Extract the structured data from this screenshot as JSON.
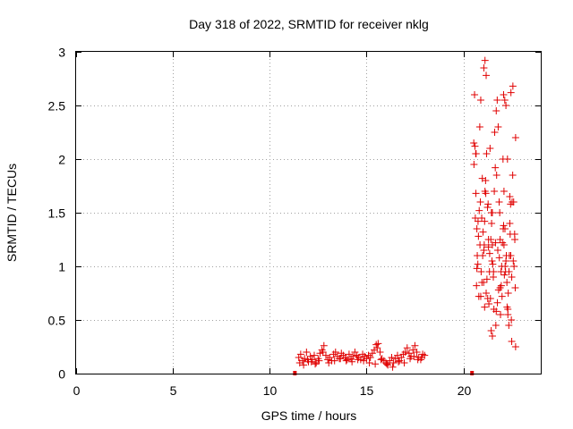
{
  "chart_data": {
    "type": "scatter",
    "title": "Day 318 of 2022, SRMTID for receiver nklg",
    "xlabel": "GPS time / hours",
    "ylabel": "SRMTID / TECUs",
    "xlim": [
      0,
      24
    ],
    "ylim": [
      0,
      3
    ],
    "xticks": [
      0,
      5,
      10,
      15,
      20
    ],
    "yticks": [
      0,
      0.5,
      1,
      1.5,
      2,
      2.5,
      3
    ],
    "xtick_labels": [
      "0",
      "5",
      "10",
      "15",
      "20"
    ],
    "ytick_labels": [
      "0",
      "0.5",
      "1",
      "1.5",
      "2",
      "2.5",
      "3"
    ],
    "grid": true,
    "marker_color": "#e00000",
    "zero_markers": [
      11.3,
      20.45
    ],
    "series": [
      {
        "name": "SRMTID",
        "x": [
          11.5,
          11.6,
          11.7,
          11.8,
          11.9,
          12.0,
          12.1,
          12.2,
          12.3,
          12.4,
          12.5,
          12.6,
          12.7,
          12.8,
          12.9,
          13.0,
          13.1,
          13.2,
          13.3,
          13.4,
          13.5,
          13.6,
          13.7,
          13.8,
          13.9,
          14.0,
          14.1,
          14.2,
          14.3,
          14.4,
          14.5,
          14.6,
          14.7,
          14.8,
          14.9,
          15.0,
          15.1,
          15.2,
          15.3,
          15.4,
          15.5,
          15.6,
          15.7,
          15.8,
          15.9,
          16.0,
          16.1,
          16.2,
          16.3,
          16.4,
          16.5,
          16.6,
          16.7,
          16.8,
          16.9,
          17.0,
          17.1,
          17.2,
          17.3,
          17.4,
          17.5,
          17.6,
          17.7,
          17.8,
          17.9,
          18.0,
          11.55,
          11.75,
          11.95,
          12.15,
          12.35,
          12.55,
          12.75,
          13.05,
          13.35,
          13.65,
          13.95,
          14.25,
          14.55,
          14.85,
          15.15,
          15.45,
          15.55,
          15.75,
          16.05,
          16.35,
          16.65,
          16.95,
          17.25,
          17.45,
          17.65,
          17.85,
          20.55,
          20.6,
          20.65,
          20.7,
          20.75,
          20.8,
          20.85,
          20.9,
          20.95,
          21.0,
          21.05,
          21.1,
          21.15,
          21.2,
          21.25,
          21.3,
          21.35,
          21.4,
          21.45,
          21.5,
          21.55,
          21.6,
          21.65,
          21.7,
          21.75,
          21.8,
          21.85,
          21.9,
          21.95,
          22.0,
          22.05,
          22.1,
          22.15,
          22.2,
          22.25,
          22.3,
          22.35,
          22.4,
          22.45,
          22.5,
          22.55,
          22.6,
          22.65,
          22.7,
          20.58,
          20.68,
          20.78,
          20.88,
          20.98,
          21.08,
          21.18,
          21.28,
          21.38,
          21.48,
          21.58,
          21.68,
          21.78,
          21.88,
          21.98,
          22.08,
          22.18,
          22.28,
          22.38,
          22.48,
          22.58,
          22.68,
          20.62,
          20.72,
          20.82,
          20.92,
          21.02,
          21.12,
          21.22,
          21.32,
          21.42,
          21.52,
          21.62,
          21.72,
          21.82,
          21.92,
          22.02,
          22.12,
          22.22,
          22.32,
          22.42,
          22.52,
          22.62,
          20.66,
          20.76,
          20.86,
          20.96,
          21.06,
          21.16,
          21.26,
          21.36,
          21.46,
          21.56,
          21.66,
          21.76,
          21.86,
          21.96,
          22.06,
          22.16,
          22.26,
          22.36,
          22.46,
          22.56,
          22.66,
          20.7,
          20.9,
          21.1,
          21.3,
          21.5,
          21.7,
          21.9,
          22.1,
          22.3,
          22.5,
          22.7,
          21.06,
          21.12,
          21.18,
          22.08,
          22.14,
          22.2,
          21.44,
          21.5,
          22.4,
          22.44,
          20.54,
          20.64
        ],
        "y": [
          0.15,
          0.18,
          0.12,
          0.14,
          0.2,
          0.11,
          0.16,
          0.13,
          0.17,
          0.1,
          0.14,
          0.19,
          0.22,
          0.26,
          0.17,
          0.13,
          0.15,
          0.12,
          0.18,
          0.2,
          0.16,
          0.14,
          0.19,
          0.17,
          0.15,
          0.13,
          0.18,
          0.14,
          0.16,
          0.2,
          0.17,
          0.15,
          0.13,
          0.18,
          0.16,
          0.14,
          0.17,
          0.15,
          0.19,
          0.22,
          0.27,
          0.28,
          0.2,
          0.14,
          0.12,
          0.1,
          0.08,
          0.12,
          0.15,
          0.1,
          0.14,
          0.17,
          0.12,
          0.15,
          0.18,
          0.2,
          0.24,
          0.19,
          0.16,
          0.22,
          0.26,
          0.2,
          0.15,
          0.13,
          0.18,
          0.17,
          0.1,
          0.08,
          0.13,
          0.11,
          0.09,
          0.12,
          0.2,
          0.1,
          0.12,
          0.14,
          0.12,
          0.11,
          0.13,
          0.12,
          0.1,
          0.09,
          0.24,
          0.13,
          0.09,
          0.06,
          0.11,
          0.1,
          0.14,
          0.16,
          0.13,
          0.15,
          1.95,
          2.12,
          1.68,
          1.35,
          1.02,
          0.72,
          2.3,
          2.55,
          1.45,
          1.1,
          0.85,
          0.62,
          1.8,
          2.05,
          1.55,
          1.25,
          0.95,
          0.7,
          1.5,
          1.2,
          0.9,
          1.7,
          1.92,
          2.45,
          2.55,
          2.3,
          1.6,
          1.25,
          0.95,
          0.72,
          2.0,
          1.7,
          1.35,
          1.05,
          0.85,
          0.6,
          0.45,
          1.4,
          1.1,
          0.9,
          1.85,
          1.6,
          1.3,
          2.2,
          2.6,
          0.82,
          1.28,
          1.6,
          1.82,
          1.2,
          0.75,
          1.58,
          2.1,
          1.05,
          0.6,
          0.45,
          1.15,
          1.5,
          1.0,
          1.38,
          0.95,
          2.0,
          1.1,
          0.5,
          1.05,
          0.8,
          1.45,
          1.1,
          1.52,
          0.95,
          1.32,
          1.7,
          0.88,
          0.65,
          1.25,
          1.02,
          2.25,
          1.85,
          0.78,
          0.55,
          1.22,
          0.92,
          1.1,
          0.75,
          1.3,
          1.6,
          1.0,
          2.05,
          1.42,
          1.2,
          0.85,
          1.15,
          1.68,
          0.7,
          1.12,
          1.4,
          0.95,
          1.22,
          0.66,
          1.08,
          0.82,
          1.35,
          1.0,
          0.62,
          0.95,
          2.62,
          2.68,
          1.25,
          0.98,
          0.72,
          1.42,
          1.18,
          1.5,
          0.58,
          0.8,
          1.2,
          0.55,
          0.3,
          0.25,
          2.85,
          2.92,
          2.78,
          2.6,
          2.55,
          2.5,
          0.4,
          0.35,
          1.65,
          1.58,
          2.15,
          2.05
        ]
      }
    ]
  }
}
